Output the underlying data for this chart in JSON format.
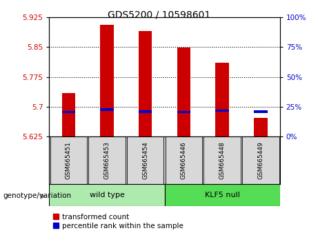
{
  "title": "GDS5200 / 10598601",
  "samples": [
    "GSM665451",
    "GSM665453",
    "GSM665454",
    "GSM665446",
    "GSM665448",
    "GSM665449"
  ],
  "group_labels": [
    "wild type",
    "KLF5 null"
  ],
  "wt_color": "#aeeaae",
  "klf_color": "#55dd55",
  "red_values": [
    5.735,
    5.905,
    5.89,
    5.848,
    5.81,
    5.672
  ],
  "blue_values": [
    5.687,
    5.693,
    5.688,
    5.687,
    5.69,
    5.688
  ],
  "y_min": 5.625,
  "y_max": 5.925,
  "y_ticks_left": [
    5.625,
    5.7,
    5.775,
    5.85,
    5.925
  ],
  "y_ticks_right": [
    0,
    25,
    50,
    75,
    100
  ],
  "bar_width": 0.35,
  "bar_color_red": "#cc0000",
  "bar_color_blue": "#0000cc",
  "label_color_left": "#cc0000",
  "label_color_right": "#0000cc",
  "legend_red_label": "transformed count",
  "legend_blue_label": "percentile rank within the sample",
  "genotype_label": "genotype/variation"
}
